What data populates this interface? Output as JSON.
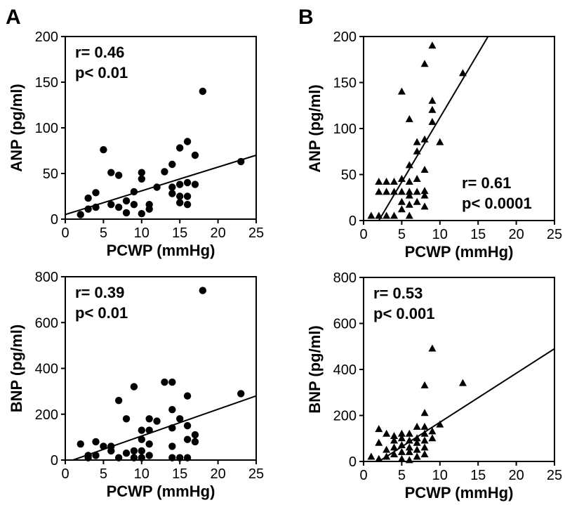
{
  "panel_labels": [
    "A",
    "B"
  ],
  "chart_data": [
    {
      "id": "a-anp",
      "type": "scatter",
      "marker": "circle",
      "xlabel": "PCWP (mmHg)",
      "ylabel": "ANP (pg/ml)",
      "xlim": [
        0,
        25
      ],
      "ylim": [
        0,
        200
      ],
      "xticks": [
        0,
        5,
        10,
        15,
        20,
        25
      ],
      "yticks": [
        0,
        50,
        100,
        150,
        200
      ],
      "stats": [
        "r= 0.46",
        "p< 0.01"
      ],
      "stats_position": "top-left",
      "regression": {
        "x": [
          0,
          25
        ],
        "y": [
          5,
          70
        ]
      },
      "points": [
        [
          2,
          5
        ],
        [
          3,
          11
        ],
        [
          3,
          23
        ],
        [
          4,
          13
        ],
        [
          4,
          29
        ],
        [
          5,
          76
        ],
        [
          6,
          16
        ],
        [
          6,
          51
        ],
        [
          7,
          13
        ],
        [
          7,
          48
        ],
        [
          8,
          7
        ],
        [
          8,
          20
        ],
        [
          9,
          16
        ],
        [
          9,
          30
        ],
        [
          10,
          6
        ],
        [
          10,
          44
        ],
        [
          10,
          51
        ],
        [
          11,
          11
        ],
        [
          11,
          16
        ],
        [
          12,
          35
        ],
        [
          13,
          52
        ],
        [
          14,
          28
        ],
        [
          14,
          35
        ],
        [
          14,
          60
        ],
        [
          15,
          18
        ],
        [
          15,
          25
        ],
        [
          15,
          38
        ],
        [
          15,
          78
        ],
        [
          16,
          16
        ],
        [
          16,
          25
        ],
        [
          16,
          40
        ],
        [
          16,
          85
        ],
        [
          17,
          38
        ],
        [
          17,
          70
        ],
        [
          18,
          140
        ],
        [
          23,
          63
        ]
      ]
    },
    {
      "id": "b-anp",
      "type": "scatter",
      "marker": "triangle",
      "xlabel": "PCWP (mmHg)",
      "ylabel": "ANP (pg/ml)",
      "xlim": [
        0,
        25
      ],
      "ylim": [
        0,
        200
      ],
      "xticks": [
        0,
        5,
        10,
        15,
        20,
        25
      ],
      "yticks": [
        0,
        50,
        100,
        150,
        200
      ],
      "stats": [
        "r= 0.61",
        "p< 0.0001"
      ],
      "stats_position": "bottom-right",
      "regression": {
        "x": [
          2,
          16.3
        ],
        "y": [
          0,
          200
        ]
      },
      "points": [
        [
          1,
          5
        ],
        [
          2,
          5
        ],
        [
          2,
          31
        ],
        [
          2,
          42
        ],
        [
          3,
          5
        ],
        [
          3,
          31
        ],
        [
          3,
          42
        ],
        [
          4,
          5
        ],
        [
          4,
          31
        ],
        [
          4,
          42
        ],
        [
          5,
          12
        ],
        [
          5,
          20
        ],
        [
          5,
          31
        ],
        [
          5,
          45
        ],
        [
          5,
          140
        ],
        [
          6,
          5
        ],
        [
          6,
          17
        ],
        [
          6,
          27
        ],
        [
          6,
          31
        ],
        [
          6,
          42
        ],
        [
          6,
          60
        ],
        [
          6,
          110
        ],
        [
          7,
          20
        ],
        [
          7,
          31
        ],
        [
          7,
          45
        ],
        [
          7,
          75
        ],
        [
          7,
          85
        ],
        [
          8,
          15
        ],
        [
          8,
          27
        ],
        [
          8,
          32
        ],
        [
          8,
          55
        ],
        [
          8,
          88
        ],
        [
          8,
          170
        ],
        [
          9,
          107
        ],
        [
          9,
          120
        ],
        [
          9,
          130
        ],
        [
          9,
          190
        ],
        [
          10,
          85
        ],
        [
          13,
          160
        ]
      ]
    },
    {
      "id": "a-bnp",
      "type": "scatter",
      "marker": "circle",
      "xlabel": "PCWP (mmHg)",
      "ylabel": "BNP (pg/ml)",
      "xlim": [
        0,
        25
      ],
      "ylim": [
        0,
        800
      ],
      "xticks": [
        0,
        5,
        10,
        15,
        20,
        25
      ],
      "yticks": [
        0,
        200,
        400,
        600,
        800
      ],
      "stats": [
        "r= 0.39",
        "p< 0.01"
      ],
      "stats_position": "top-left",
      "regression": {
        "x": [
          1,
          25
        ],
        "y": [
          0,
          280
        ]
      },
      "points": [
        [
          2,
          70
        ],
        [
          3,
          10
        ],
        [
          3,
          20
        ],
        [
          4,
          20
        ],
        [
          4,
          80
        ],
        [
          5,
          60
        ],
        [
          6,
          40
        ],
        [
          6,
          60
        ],
        [
          7,
          10
        ],
        [
          7,
          260
        ],
        [
          8,
          30
        ],
        [
          8,
          180
        ],
        [
          9,
          10
        ],
        [
          9,
          40
        ],
        [
          9,
          320
        ],
        [
          10,
          10
        ],
        [
          10,
          40
        ],
        [
          10,
          90
        ],
        [
          10,
          130
        ],
        [
          11,
          20
        ],
        [
          11,
          70
        ],
        [
          11,
          130
        ],
        [
          11,
          180
        ],
        [
          12,
          170
        ],
        [
          13,
          340
        ],
        [
          14,
          10
        ],
        [
          14,
          60
        ],
        [
          14,
          140
        ],
        [
          14,
          220
        ],
        [
          14,
          340
        ],
        [
          15,
          10
        ],
        [
          15,
          180
        ],
        [
          16,
          10
        ],
        [
          16,
          90
        ],
        [
          16,
          150
        ],
        [
          16,
          280
        ],
        [
          17,
          80
        ],
        [
          17,
          110
        ],
        [
          18,
          740
        ],
        [
          23,
          290
        ]
      ]
    },
    {
      "id": "b-bnp",
      "type": "scatter",
      "marker": "triangle",
      "xlabel": "PCWP (mmHg)",
      "ylabel": "BNP (pg/ml)",
      "xlim": [
        0,
        25
      ],
      "ylim": [
        0,
        800
      ],
      "xticks": [
        0,
        5,
        10,
        15,
        20,
        25
      ],
      "yticks": [
        0,
        200,
        400,
        600,
        800
      ],
      "stats": [
        "r= 0.53",
        "p< 0.001"
      ],
      "stats_position": "top-left",
      "regression": {
        "x": [
          2,
          25
        ],
        "y": [
          0,
          490
        ]
      },
      "points": [
        [
          1,
          20
        ],
        [
          2,
          10
        ],
        [
          2,
          80
        ],
        [
          2,
          140
        ],
        [
          3,
          20
        ],
        [
          3,
          50
        ],
        [
          3,
          120
        ],
        [
          4,
          30
        ],
        [
          4,
          60
        ],
        [
          4,
          90
        ],
        [
          4,
          110
        ],
        [
          5,
          10
        ],
        [
          5,
          40
        ],
        [
          5,
          70
        ],
        [
          5,
          100
        ],
        [
          5,
          120
        ],
        [
          6,
          5
        ],
        [
          6,
          40
        ],
        [
          6,
          60
        ],
        [
          6,
          90
        ],
        [
          6,
          120
        ],
        [
          7,
          20
        ],
        [
          7,
          50
        ],
        [
          7,
          80
        ],
        [
          7,
          100
        ],
        [
          7,
          150
        ],
        [
          8,
          30
        ],
        [
          8,
          60
        ],
        [
          8,
          90
        ],
        [
          8,
          120
        ],
        [
          8,
          150
        ],
        [
          8,
          210
        ],
        [
          8,
          330
        ],
        [
          9,
          100
        ],
        [
          9,
          130
        ],
        [
          9,
          490
        ],
        [
          10,
          160
        ],
        [
          13,
          340
        ]
      ]
    }
  ]
}
